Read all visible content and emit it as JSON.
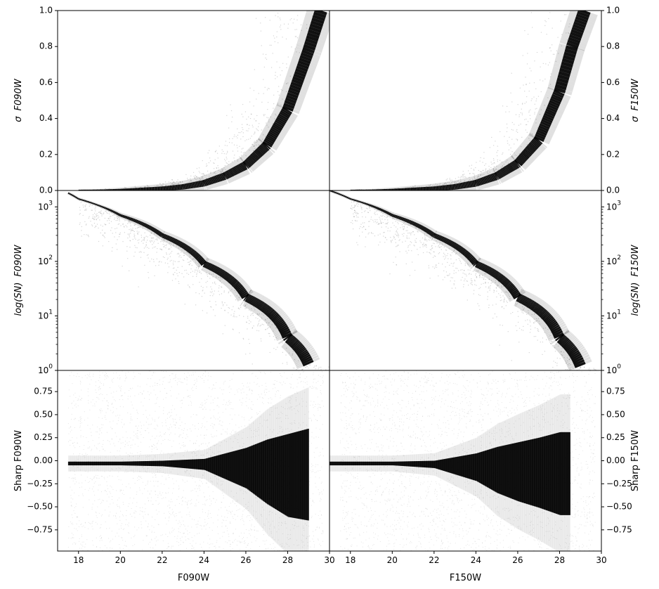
{
  "chart_data": {
    "type": "heatmap",
    "layout": "3 rows x 2 columns, shared x per column",
    "columns": [
      {
        "filter": "F090W",
        "xlabel": "F090W",
        "xlim": [
          17,
          30
        ],
        "xticks": [
          18,
          20,
          22,
          24,
          26,
          28,
          30
        ]
      },
      {
        "filter": "F150W",
        "xlabel": "F150W",
        "xlim": [
          17,
          30
        ],
        "xticks": [
          18,
          20,
          22,
          24,
          26,
          28,
          30
        ]
      }
    ],
    "panels": [
      {
        "row": 0,
        "col": 0,
        "quantity": "sigma",
        "ylabel": {
          "left": "σ",
          "right": "F090W"
        },
        "yaxis_side": "left",
        "ylim": [
          0,
          1
        ],
        "yscale": "linear",
        "yticks": [
          0.0,
          0.2,
          0.4,
          0.6,
          0.8,
          1.0
        ],
        "ytick_labels": [
          "0.0",
          "0.2",
          "0.4",
          "0.6",
          "0.8",
          "1.0"
        ],
        "density_ridge": {
          "x": [
            18,
            20,
            22,
            23,
            24,
            25,
            26,
            27,
            28,
            29,
            29.6
          ],
          "y": [
            0.001,
            0.003,
            0.01,
            0.02,
            0.04,
            0.08,
            0.14,
            0.25,
            0.45,
            0.78,
            1.0
          ]
        }
      },
      {
        "row": 0,
        "col": 1,
        "quantity": "sigma",
        "ylabel": {
          "left": "σ",
          "right": "F150W"
        },
        "yaxis_side": "right",
        "ylim": [
          0,
          1
        ],
        "yscale": "linear",
        "yticks": [
          0.0,
          0.2,
          0.4,
          0.6,
          0.8,
          1.0
        ],
        "ytick_labels": [
          "0.0",
          "0.2",
          "0.4",
          "0.6",
          "0.8",
          "1.0"
        ],
        "density_ridge": {
          "x": [
            18,
            20,
            22,
            23,
            24,
            25,
            26,
            27,
            28,
            28.6,
            29.2
          ],
          "y": [
            0.001,
            0.003,
            0.01,
            0.02,
            0.04,
            0.08,
            0.15,
            0.28,
            0.55,
            0.8,
            1.0
          ]
        }
      },
      {
        "row": 1,
        "col": 0,
        "quantity": "signal_to_noise",
        "ylabel": {
          "left": "log(SN)",
          "right": "F090W"
        },
        "yaxis_side": "left",
        "ylim": [
          1,
          2000
        ],
        "yscale": "log",
        "yticks": [
          1,
          10,
          100,
          1000
        ],
        "ytick_labels": [
          "10^0",
          "10^1",
          "10^2",
          "10^3"
        ],
        "density_ridge": {
          "x": [
            17.5,
            18,
            20,
            22,
            24,
            26,
            28,
            29
          ],
          "y": [
            1800,
            1400,
            700,
            300,
            90,
            22,
            4,
            1.3
          ]
        }
      },
      {
        "row": 1,
        "col": 1,
        "quantity": "signal_to_noise",
        "ylabel": {
          "left": "log(SN)",
          "right": "F150W"
        },
        "yaxis_side": "right",
        "ylim": [
          1,
          2000
        ],
        "yscale": "log",
        "yticks": [
          1,
          10,
          100,
          1000
        ],
        "ytick_labels": [
          "10^0",
          "10^1",
          "10^2",
          "10^3"
        ],
        "density_ridge": {
          "x": [
            17,
            18,
            20,
            22,
            24,
            26,
            28,
            29
          ],
          "y": [
            2000,
            1400,
            700,
            300,
            90,
            22,
            4,
            1.2
          ]
        }
      },
      {
        "row": 2,
        "col": 0,
        "quantity": "sharpness",
        "ylabel": {
          "left": "Sharp F090W"
        },
        "yaxis_side": "left",
        "ylim": [
          -0.98,
          0.98
        ],
        "yscale": "linear",
        "yticks": [
          -0.75,
          -0.5,
          -0.25,
          0.0,
          0.25,
          0.5,
          0.75
        ],
        "ytick_labels": [
          "−0.75",
          "−0.50",
          "−0.25",
          "0.00",
          "0.25",
          "0.50",
          "0.75"
        ],
        "density_ridge": {
          "x": [
            17.5,
            20,
            22,
            24,
            26,
            27,
            28,
            29
          ],
          "y": [
            -0.03,
            -0.03,
            -0.03,
            -0.04,
            -0.08,
            -0.12,
            -0.16,
            -0.15
          ]
        },
        "band_halfwidth": [
          0.02,
          0.02,
          0.03,
          0.06,
          0.22,
          0.35,
          0.45,
          0.5
        ]
      },
      {
        "row": 2,
        "col": 1,
        "quantity": "sharpness",
        "ylabel": {
          "left": "Sharp F150W"
        },
        "yaxis_side": "right",
        "ylim": [
          -0.98,
          0.98
        ],
        "yscale": "linear",
        "yticks": [
          -0.75,
          -0.5,
          -0.25,
          0.0,
          0.25,
          0.5,
          0.75
        ],
        "ytick_labels": [
          "−0.75",
          "−0.50",
          "−0.25",
          "0.00",
          "0.25",
          "0.50",
          "0.75"
        ],
        "density_ridge": {
          "x": [
            17,
            20,
            22,
            24,
            25,
            26,
            27,
            28,
            28.5
          ],
          "y": [
            -0.03,
            -0.03,
            -0.04,
            -0.07,
            -0.1,
            -0.12,
            -0.13,
            -0.14,
            -0.14
          ]
        },
        "band_halfwidth": [
          0.02,
          0.02,
          0.04,
          0.15,
          0.25,
          0.32,
          0.38,
          0.45,
          0.45
        ]
      }
    ],
    "grid": false,
    "legend": "none"
  }
}
